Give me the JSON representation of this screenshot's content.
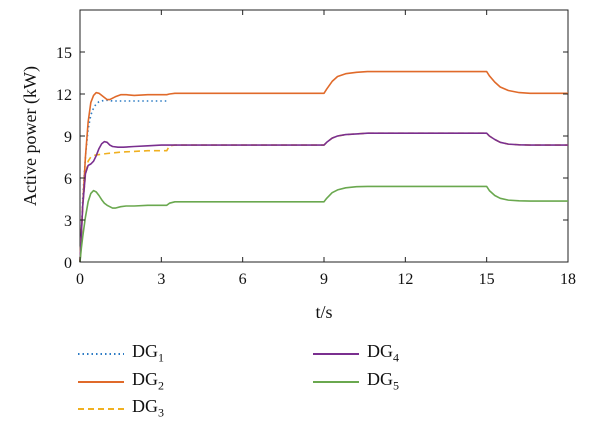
{
  "chart_data": {
    "type": "line",
    "title": "",
    "xlabel": "t/s",
    "ylabel": "Active power (kW)",
    "xlim": [
      0,
      18
    ],
    "ylim": [
      0,
      18
    ],
    "xticks": [
      0,
      3,
      6,
      9,
      12,
      15,
      18
    ],
    "yticks": [
      0,
      3,
      6,
      9,
      12,
      15
    ],
    "grid": false,
    "legend_position": "below",
    "series": [
      {
        "name": "DG",
        "subscript": "1",
        "color": "#2c7bc4",
        "dash": "dotted",
        "x": [
          0,
          0.05,
          0.1,
          0.2,
          0.3,
          0.4,
          0.5,
          0.6,
          0.7,
          0.8,
          0.9,
          1.0,
          1.2,
          1.5,
          2.0,
          2.5,
          3.0,
          3.2
        ],
        "y": [
          0,
          2.0,
          4.5,
          7.5,
          9.5,
          10.5,
          11.0,
          11.3,
          11.45,
          11.5,
          11.55,
          11.55,
          11.5,
          11.5,
          11.5,
          11.5,
          11.5,
          11.5
        ]
      },
      {
        "name": "DG",
        "subscript": "2",
        "color": "#e06a2a",
        "dash": "solid",
        "x": [
          0,
          0.05,
          0.1,
          0.2,
          0.3,
          0.4,
          0.5,
          0.6,
          0.7,
          0.8,
          0.9,
          1.0,
          1.1,
          1.3,
          1.5,
          1.7,
          2.0,
          2.5,
          3.0,
          3.2,
          3.3,
          3.5,
          4,
          5,
          6,
          7,
          8,
          9,
          9.1,
          9.3,
          9.5,
          9.8,
          10.2,
          10.6,
          11,
          12,
          13,
          14,
          15,
          15.1,
          15.3,
          15.5,
          15.8,
          16.2,
          16.6,
          17,
          17.5,
          18
        ],
        "y": [
          0,
          2.0,
          4.0,
          7.5,
          10.0,
          11.4,
          11.9,
          12.1,
          12.05,
          11.9,
          11.75,
          11.6,
          11.6,
          11.8,
          11.95,
          11.95,
          11.9,
          11.95,
          11.95,
          11.95,
          12.0,
          12.05,
          12.05,
          12.05,
          12.05,
          12.05,
          12.05,
          12.05,
          12.35,
          12.9,
          13.25,
          13.45,
          13.55,
          13.6,
          13.6,
          13.6,
          13.6,
          13.6,
          13.6,
          13.3,
          12.85,
          12.5,
          12.25,
          12.1,
          12.05,
          12.05,
          12.05,
          12.05
        ]
      },
      {
        "name": "DG",
        "subscript": "3",
        "color": "#f0b020",
        "dash": "dashed",
        "x": [
          0,
          0.05,
          0.1,
          0.2,
          0.3,
          0.4,
          0.5,
          0.6,
          0.8,
          1.0,
          1.5,
          2.0,
          2.5,
          3.0,
          3.2,
          3.3,
          3.5,
          4,
          5,
          6,
          7,
          8,
          9,
          9.1,
          9.3,
          9.5,
          9.8,
          10.2,
          10.6,
          11,
          12,
          13,
          14,
          15,
          15.1,
          15.3,
          15.5,
          15.8,
          16.2,
          16.6,
          17,
          17.5,
          18
        ],
        "y": [
          0,
          2.0,
          4.0,
          6.2,
          7.2,
          7.5,
          7.6,
          7.65,
          7.7,
          7.75,
          7.85,
          7.9,
          7.95,
          7.95,
          7.95,
          8.3,
          8.35,
          8.35,
          8.35,
          8.35,
          8.35,
          8.35,
          8.35,
          8.55,
          8.85,
          9.0,
          9.1,
          9.15,
          9.2,
          9.2,
          9.2,
          9.2,
          9.2,
          9.2,
          9.0,
          8.75,
          8.55,
          8.42,
          8.37,
          8.35,
          8.35,
          8.35,
          8.35
        ]
      },
      {
        "name": "DG",
        "subscript": "4",
        "color": "#7a2f8f",
        "dash": "solid",
        "x": [
          0,
          0.05,
          0.1,
          0.2,
          0.3,
          0.4,
          0.5,
          0.6,
          0.7,
          0.8,
          0.9,
          1.0,
          1.1,
          1.2,
          1.4,
          1.6,
          2.0,
          2.5,
          3.0,
          3.2,
          3.3,
          3.5,
          4,
          5,
          6,
          7,
          8,
          9,
          9.1,
          9.3,
          9.5,
          9.8,
          10.2,
          10.6,
          11,
          12,
          13,
          14,
          15,
          15.1,
          15.3,
          15.5,
          15.8,
          16.2,
          16.6,
          17,
          17.5,
          18
        ],
        "y": [
          0,
          2.0,
          4.0,
          6.3,
          6.9,
          7.0,
          7.2,
          7.6,
          8.1,
          8.45,
          8.6,
          8.55,
          8.35,
          8.25,
          8.2,
          8.2,
          8.25,
          8.3,
          8.35,
          8.35,
          8.35,
          8.35,
          8.35,
          8.35,
          8.35,
          8.35,
          8.35,
          8.35,
          8.55,
          8.85,
          9.0,
          9.1,
          9.15,
          9.2,
          9.2,
          9.2,
          9.2,
          9.2,
          9.2,
          9.0,
          8.75,
          8.55,
          8.42,
          8.37,
          8.35,
          8.35,
          8.35,
          8.35
        ]
      },
      {
        "name": "DG",
        "subscript": "5",
        "color": "#6aa84f",
        "dash": "solid",
        "x": [
          0,
          0.05,
          0.1,
          0.2,
          0.3,
          0.4,
          0.5,
          0.6,
          0.7,
          0.8,
          0.9,
          1.0,
          1.1,
          1.2,
          1.3,
          1.5,
          1.7,
          2.0,
          2.5,
          3.0,
          3.2,
          3.3,
          3.5,
          4,
          5,
          6,
          7,
          8,
          9,
          9.1,
          9.3,
          9.5,
          9.8,
          10.2,
          10.6,
          11,
          12,
          13,
          14,
          15,
          15.1,
          15.3,
          15.5,
          15.8,
          16.2,
          16.6,
          17,
          17.5,
          18
        ],
        "y": [
          0,
          1.0,
          1.8,
          3.2,
          4.3,
          4.9,
          5.1,
          5.0,
          4.75,
          4.45,
          4.2,
          4.05,
          3.95,
          3.85,
          3.85,
          3.95,
          4.0,
          4.0,
          4.05,
          4.05,
          4.05,
          4.2,
          4.3,
          4.3,
          4.3,
          4.3,
          4.3,
          4.3,
          4.3,
          4.55,
          4.95,
          5.15,
          5.3,
          5.38,
          5.4,
          5.4,
          5.4,
          5.4,
          5.4,
          5.4,
          5.1,
          4.75,
          4.55,
          4.42,
          4.37,
          4.35,
          4.35,
          4.35,
          4.35
        ]
      }
    ]
  }
}
